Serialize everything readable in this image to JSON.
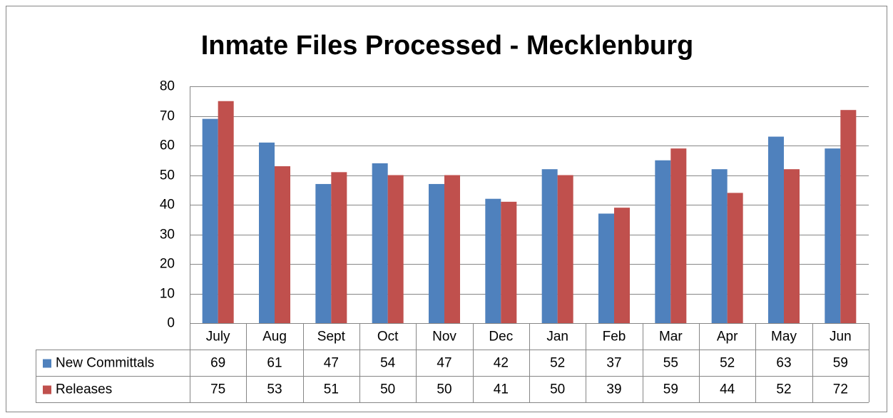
{
  "chart_data": {
    "type": "bar",
    "title": "Inmate Files Processed - Mecklenburg",
    "categories": [
      "July",
      "Aug",
      "Sept",
      "Oct",
      "Nov",
      "Dec",
      "Jan",
      "Feb",
      "Mar",
      "Apr",
      "May",
      "Jun"
    ],
    "series": [
      {
        "name": "New Committals",
        "color": "#4f81bd",
        "values": [
          69,
          61,
          47,
          54,
          47,
          42,
          52,
          37,
          55,
          52,
          63,
          59
        ]
      },
      {
        "name": "Releases",
        "color": "#c0504d",
        "values": [
          75,
          53,
          51,
          50,
          50,
          41,
          50,
          39,
          59,
          44,
          52,
          72
        ]
      }
    ],
    "ylim": [
      0,
      80
    ],
    "yticks": [
      0,
      10,
      20,
      30,
      40,
      50,
      60,
      70,
      80
    ],
    "grid": true,
    "data_table": true
  }
}
